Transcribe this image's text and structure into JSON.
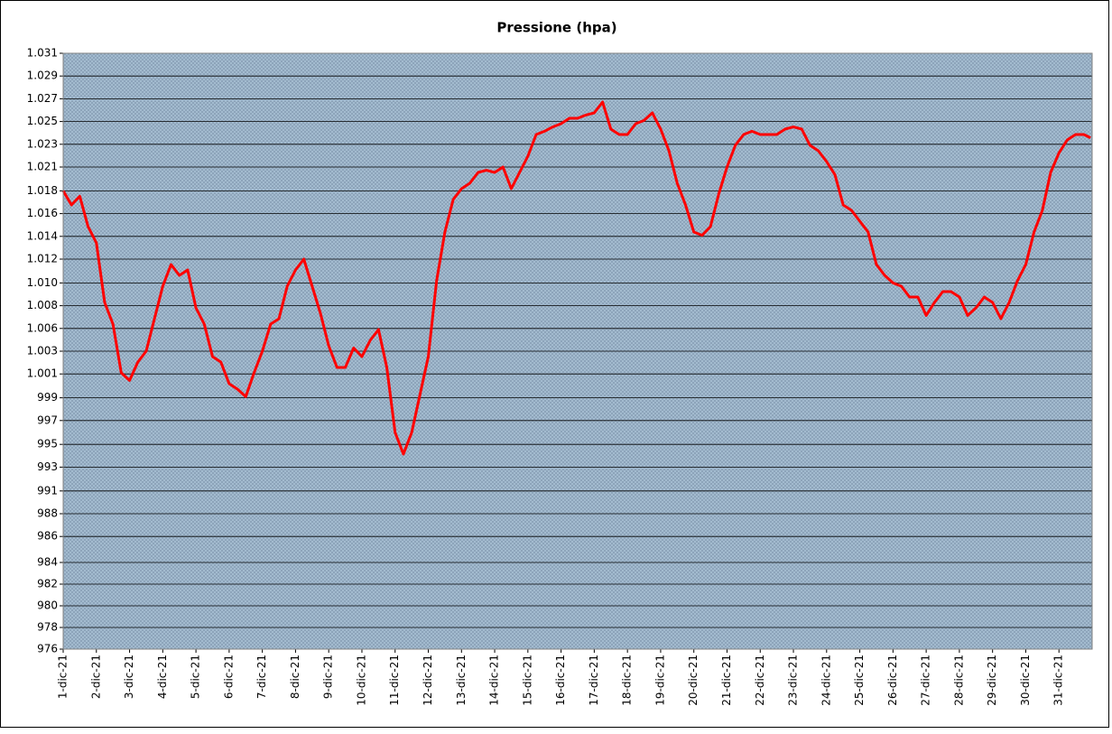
{
  "chart_data": {
    "type": "line",
    "title": "Pressione (hpa)",
    "x": [
      1,
      1.25,
      1.5,
      1.75,
      2,
      2.25,
      2.5,
      2.75,
      3,
      3.25,
      3.5,
      3.75,
      4,
      4.25,
      4.5,
      4.75,
      5,
      5.25,
      5.5,
      5.75,
      6,
      6.25,
      6.5,
      6.75,
      7,
      7.25,
      7.5,
      7.75,
      8,
      8.25,
      8.5,
      8.75,
      9,
      9.25,
      9.5,
      9.75,
      10,
      10.25,
      10.5,
      10.75,
      11,
      11.25,
      11.5,
      11.75,
      12,
      12.25,
      12.5,
      12.75,
      13,
      13.25,
      13.5,
      13.75,
      14,
      14.25,
      14.5,
      14.75,
      15,
      15.25,
      15.5,
      15.75,
      16,
      16.25,
      16.5,
      16.75,
      17,
      17.25,
      17.5,
      17.75,
      18,
      18.25,
      18.5,
      18.75,
      19,
      19.25,
      19.5,
      19.75,
      20,
      20.25,
      20.5,
      20.75,
      21,
      21.25,
      21.5,
      21.75,
      22,
      22.25,
      22.5,
      22.75,
      23,
      23.25,
      23.5,
      23.75,
      24,
      24.25,
      24.5,
      24.75,
      25,
      25.25,
      25.5,
      25.75,
      26,
      26.25,
      26.5,
      26.75,
      27,
      27.25,
      27.5,
      27.75,
      28,
      28.25,
      28.5,
      28.75,
      29,
      29.25,
      29.5,
      29.75,
      30,
      30.25,
      30.5,
      30.75,
      31,
      31.25,
      31.5,
      31.75,
      31.95
    ],
    "series": [
      {
        "name": "Pressione",
        "color": "#ff0000",
        "values": [
          1018.3,
          1017,
          1017.8,
          1015,
          1013.5,
          1008,
          1006,
          1001.5,
          1000.8,
          1002.5,
          1003.5,
          1006.5,
          1009.5,
          1011.5,
          1010.5,
          1011,
          1007.5,
          1006,
          1003,
          1002.5,
          1000.5,
          1000,
          999.3,
          1001.5,
          1003.5,
          1006,
          1006.5,
          1009.5,
          1011,
          1012,
          1009.5,
          1007,
          1004,
          1002,
          1002,
          1003.8,
          1003,
          1004.5,
          1005.5,
          1002,
          996,
          994,
          996,
          999.5,
          1003,
          1010,
          1014.5,
          1017.5,
          1018.5,
          1019,
          1020,
          1020.2,
          1020,
          1020.5,
          1018.5,
          1020,
          1021.5,
          1023.5,
          1023.8,
          1024.2,
          1024.5,
          1025,
          1025,
          1025.3,
          1025.5,
          1026.5,
          1024,
          1023.5,
          1023.5,
          1024.5,
          1024.8,
          1025.5,
          1024,
          1022,
          1019,
          1017,
          1014.5,
          1014.2,
          1015,
          1018,
          1020.5,
          1022.5,
          1023.5,
          1023.8,
          1023.5,
          1023.5,
          1023.5,
          1024,
          1024.2,
          1024,
          1022.5,
          1022,
          1021,
          1019.8,
          1017,
          1016.5,
          1015.5,
          1014.5,
          1011.5,
          1010.5,
          1009.8,
          1009.5,
          1008.5,
          1008.5,
          1006.8,
          1008,
          1009,
          1009,
          1008.5,
          1006.8,
          1007.5,
          1008.5,
          1008,
          1006.5,
          1008,
          1010,
          1011.5,
          1014.5,
          1016.5,
          1020,
          1021.8,
          1023,
          1023.5,
          1023.5,
          1023.2
        ]
      }
    ],
    "xlim": [
      1,
      32
    ],
    "xticks": [
      {
        "value": 1,
        "label": "1-dic-21"
      },
      {
        "value": 2,
        "label": "2-dic-21"
      },
      {
        "value": 3,
        "label": "3-dic-21"
      },
      {
        "value": 4,
        "label": "4-dic-21"
      },
      {
        "value": 5,
        "label": "5-dic-21"
      },
      {
        "value": 6,
        "label": "6-dic-21"
      },
      {
        "value": 7,
        "label": "7-dic-21"
      },
      {
        "value": 8,
        "label": "8-dic-21"
      },
      {
        "value": 9,
        "label": "9-dic-21"
      },
      {
        "value": 10,
        "label": "10-dic-21"
      },
      {
        "value": 11,
        "label": "11-dic-21"
      },
      {
        "value": 12,
        "label": "12-dic-21"
      },
      {
        "value": 13,
        "label": "13-dic-21"
      },
      {
        "value": 14,
        "label": "14-dic-21"
      },
      {
        "value": 15,
        "label": "15-dic-21"
      },
      {
        "value": 16,
        "label": "16-dic-21"
      },
      {
        "value": 17,
        "label": "17-dic-21"
      },
      {
        "value": 18,
        "label": "18-dic-21"
      },
      {
        "value": 19,
        "label": "19-dic-21"
      },
      {
        "value": 20,
        "label": "20-dic-21"
      },
      {
        "value": 21,
        "label": "21-dic-21"
      },
      {
        "value": 22,
        "label": "22-dic-21"
      },
      {
        "value": 23,
        "label": "23-dic-21"
      },
      {
        "value": 24,
        "label": "24-dic-21"
      },
      {
        "value": 25,
        "label": "25-dic-21"
      },
      {
        "value": 26,
        "label": "26-dic-21"
      },
      {
        "value": 27,
        "label": "27-dic-21"
      },
      {
        "value": 28,
        "label": "28-dic-21"
      },
      {
        "value": 29,
        "label": "29-dic-21"
      },
      {
        "value": 30,
        "label": "30-dic-21"
      },
      {
        "value": 31,
        "label": "31-dic-21"
      }
    ],
    "ylim": [
      976,
      1031
    ],
    "yticks": [
      976,
      978,
      980,
      982,
      984,
      {
        "value": 986.4,
        "label": "986"
      },
      {
        "value": 988.5,
        "label": "988"
      },
      {
        "value": 990.6,
        "label": "991"
      },
      {
        "value": 992.8,
        "label": "993"
      },
      {
        "value": 994.9,
        "label": "995"
      },
      {
        "value": 997.1,
        "label": "997"
      },
      {
        "value": 999.2,
        "label": "999"
      },
      {
        "value": 1001.4,
        "label": "1.001"
      },
      {
        "value": 1003.5,
        "label": "1.003"
      },
      {
        "value": 1005.6,
        "label": "1.006"
      },
      {
        "value": 1007.7,
        "label": "1.008"
      },
      {
        "value": 1009.8,
        "label": "1.010"
      },
      {
        "value": 1012,
        "label": "1.012"
      },
      {
        "value": 1014.1,
        "label": "1.014"
      },
      {
        "value": 1016.2,
        "label": "1.016"
      },
      {
        "value": 1018.3,
        "label": "1.018"
      },
      {
        "value": 1020.5,
        "label": "1.021"
      },
      {
        "value": 1022.6,
        "label": "1.023"
      },
      {
        "value": 1024.7,
        "label": "1.025"
      },
      {
        "value": 1026.8,
        "label": "1.027"
      },
      {
        "value": 1028.9,
        "label": "1.029"
      },
      {
        "value": 1031,
        "label": "1.031"
      }
    ],
    "grid": true
  }
}
